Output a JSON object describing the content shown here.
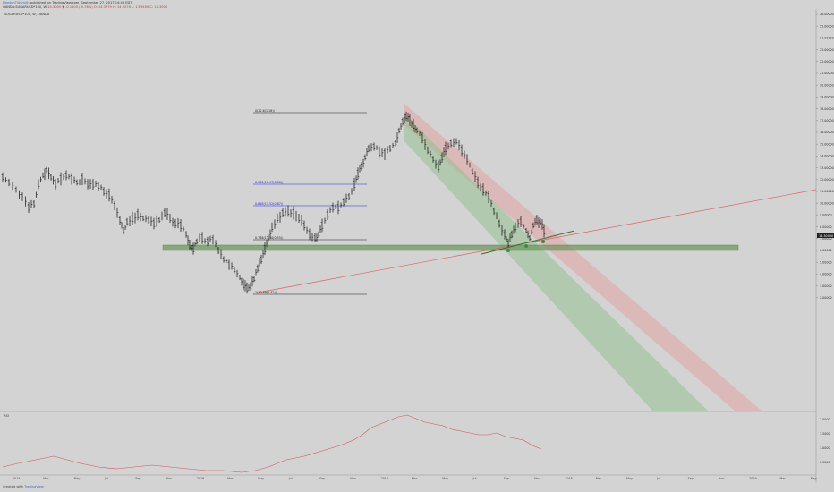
{
  "header": {
    "publisher_line_user": "NewtonTiltSmith",
    "publisher_line_text": " published on TradingView.com, September 27, 2017 14:43 EDT",
    "symbol_line": "OANDA:SUGARUSD*100, W",
    "symbol_values": "14.3000 ▼ -0.1100 (-0.76%)",
    "ohlc_o": "O: 14.3779",
    "ohlc_h": "H: 14.5578",
    "ohlc_l": "L: 13.9450",
    "ohlc_c": "C: 14.3000",
    "sub_title": "SUGARUSD*100, W, OANDA"
  },
  "footer": {
    "created_with": "Created with",
    "brand": "TradingView"
  },
  "price_axis": {
    "labels": [
      "26.00000",
      "25.00000",
      "24.00000",
      "23.00000",
      "22.00000",
      "21.00000",
      "20.00000",
      "19.00000",
      "18.00000",
      "17.00000",
      "16.00000",
      "15.00000",
      "14.00000",
      "13.00000",
      "12.00000",
      "11.00000",
      "10.00000",
      "9.00000",
      "8.00000",
      "7.00000",
      "6.00000",
      "5.00000",
      "4.00000",
      "3.00000",
      "2.00000"
    ],
    "current_price": "14.30000"
  },
  "rsi_axis": {
    "labels": [
      "2.0000",
      "1.5000",
      "1.0000",
      "0.5000"
    ]
  },
  "fib_levels": [
    {
      "label": "0(22.6(1.16))",
      "color": "#222222"
    },
    {
      "label": "0.382(18.17(0.86))",
      "color": "#2b2bdc"
    },
    {
      "label": "0.618(15.52(0.67))",
      "color": "#2b2bdc"
    },
    {
      "label": "0.786(13.50(0.55))",
      "color": "#222222"
    },
    {
      "label": "1(10.89(0.42))",
      "color": "#222222"
    }
  ],
  "indicator_label": "RSI",
  "time_axis": {
    "labels": [
      "2015",
      "Mar",
      "May",
      "Jul",
      "Sep",
      "Nov",
      "2016",
      "Mar",
      "May",
      "Jul",
      "Sep",
      "Nov",
      "2017",
      "Mar",
      "May",
      "Jul",
      "Sep",
      "Nov",
      "2018",
      "Mar",
      "May",
      "Jul",
      "Sep",
      "Nov",
      "2019",
      "Mar",
      "May"
    ]
  },
  "colors": {
    "background": "#d3d3d3",
    "bars": "#111111",
    "support_zone": "#6d9a5e",
    "channel_red": "#e79a9a",
    "channel_green": "#8fbf8a",
    "trendline": "#e06060",
    "indicator_line": "#d65353",
    "markers": "#3d8a4a"
  }
}
